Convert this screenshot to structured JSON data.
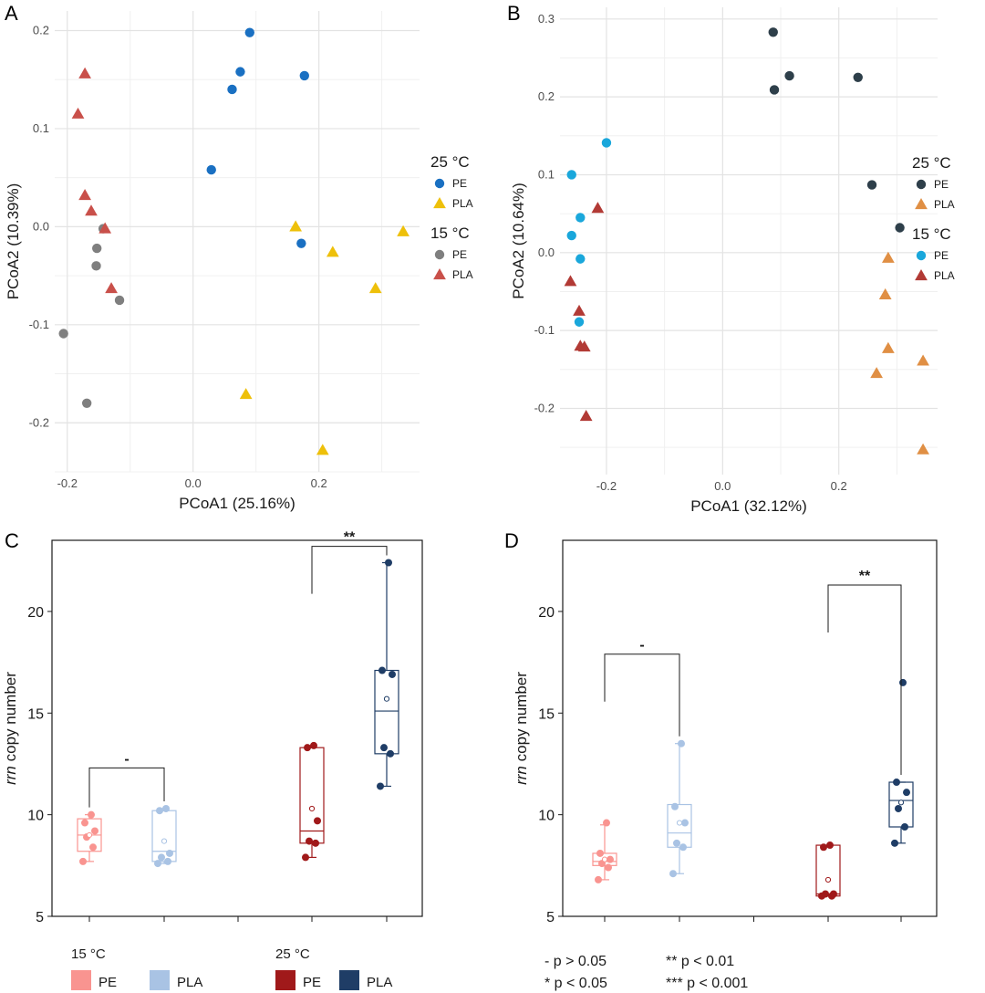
{
  "colors": {
    "pe25_A": "#1a70c2",
    "pla25_A": "#eec00a",
    "pe15_A": "#7f7f7f",
    "pla15_A": "#c9504a",
    "pe25_B": "#2e3f4a",
    "pla25_B": "#e08f44",
    "pe15_B": "#1aa7db",
    "pla15_B": "#b23a35",
    "box_pe15": "#f99490",
    "box_pla15": "#a9c3e4",
    "box_pe25": "#a0191a",
    "box_pla25": "#1f3d66"
  },
  "chart_data": [
    {
      "panel": "A",
      "type": "scatter",
      "xlabel": "PCoA1 (25.16%)",
      "ylabel": "PCoA2 (10.39%)",
      "xlim": [
        -0.22,
        0.36
      ],
      "ylim": [
        -0.25,
        0.22
      ],
      "xticks": [
        -0.2,
        0.0,
        0.2
      ],
      "xtick_labels": [
        "-0.2",
        "0.0",
        "0.2"
      ],
      "yticks": [
        -0.2,
        -0.1,
        0.0,
        0.1,
        0.2
      ],
      "ytick_labels": [
        "-0.2",
        "-0.1",
        "0.0",
        "0.1",
        "0.2"
      ],
      "legend": [
        {
          "title": "25 °C",
          "items": [
            {
              "label": "PE",
              "shape": "circle",
              "color_key": "pe25_A"
            },
            {
              "label": "PLA",
              "shape": "triangle",
              "color_key": "pla25_A"
            }
          ]
        },
        {
          "title": "15 °C",
          "items": [
            {
              "label": "PE",
              "shape": "circle",
              "color_key": "pe15_A"
            },
            {
              "label": "PLA",
              "shape": "triangle",
              "color_key": "pla15_A"
            }
          ]
        }
      ],
      "series": [
        {
          "name": "25 °C PE",
          "shape": "circle",
          "color_key": "pe25_A",
          "points": [
            [
              0.09,
              0.198
            ],
            [
              0.075,
              0.158
            ],
            [
              0.062,
              0.14
            ],
            [
              0.177,
              0.154
            ],
            [
              0.029,
              0.058
            ],
            [
              0.172,
              -0.017
            ]
          ]
        },
        {
          "name": "25 °C PLA",
          "shape": "triangle",
          "color_key": "pla25_A",
          "points": [
            [
              0.163,
              0.0
            ],
            [
              0.222,
              -0.026
            ],
            [
              0.334,
              -0.005
            ],
            [
              0.29,
              -0.063
            ],
            [
              0.084,
              -0.171
            ],
            [
              0.206,
              -0.228
            ]
          ]
        },
        {
          "name": "15 °C PE",
          "shape": "circle",
          "color_key": "pe15_A",
          "points": [
            [
              -0.143,
              -0.002
            ],
            [
              -0.153,
              -0.022
            ],
            [
              -0.154,
              -0.04
            ],
            [
              -0.117,
              -0.075
            ],
            [
              -0.206,
              -0.109
            ],
            [
              -0.169,
              -0.18
            ]
          ]
        },
        {
          "name": "15 °C PLA",
          "shape": "triangle",
          "color_key": "pla15_A",
          "points": [
            [
              -0.172,
              0.156
            ],
            [
              -0.183,
              0.115
            ],
            [
              -0.172,
              0.032
            ],
            [
              -0.162,
              0.016
            ],
            [
              -0.14,
              -0.002
            ],
            [
              -0.13,
              -0.063
            ]
          ]
        }
      ]
    },
    {
      "panel": "B",
      "type": "scatter",
      "xlabel": "PCoA1 (32.12%)",
      "ylabel": "PCoA2 (10.64%)",
      "xlim": [
        -0.28,
        0.37
      ],
      "ylim": [
        -0.285,
        0.315
      ],
      "xticks": [
        -0.2,
        0.0,
        0.2
      ],
      "xtick_labels": [
        "-0.2",
        "0.0",
        "0.2"
      ],
      "yticks": [
        -0.2,
        -0.1,
        0.0,
        0.1,
        0.2,
        0.3
      ],
      "ytick_labels": [
        "-0.2",
        "-0.1",
        "0.0",
        "0.1",
        "0.2",
        "0.3"
      ],
      "legend": [
        {
          "title": "25 °C",
          "items": [
            {
              "label": "PE",
              "shape": "circle",
              "color_key": "pe25_B"
            },
            {
              "label": "PLA",
              "shape": "triangle",
              "color_key": "pla25_B"
            }
          ]
        },
        {
          "title": "15 °C",
          "items": [
            {
              "label": "PE",
              "shape": "circle",
              "color_key": "pe15_B"
            },
            {
              "label": "PLA",
              "shape": "triangle",
              "color_key": "pla15_B"
            }
          ]
        }
      ],
      "series": [
        {
          "name": "25 °C PE",
          "shape": "circle",
          "color_key": "pe25_B",
          "points": [
            [
              0.087,
              0.283
            ],
            [
              0.115,
              0.227
            ],
            [
              0.089,
              0.209
            ],
            [
              0.233,
              0.225
            ],
            [
              0.257,
              0.087
            ],
            [
              0.305,
              0.032
            ]
          ]
        },
        {
          "name": "25 °C PLA",
          "shape": "triangle",
          "color_key": "pla25_B",
          "points": [
            [
              0.285,
              -0.007
            ],
            [
              0.28,
              -0.054
            ],
            [
              0.285,
              -0.123
            ],
            [
              0.265,
              -0.155
            ],
            [
              0.345,
              -0.139
            ],
            [
              0.345,
              -0.253
            ]
          ]
        },
        {
          "name": "15 °C PE",
          "shape": "circle",
          "color_key": "pe15_B",
          "points": [
            [
              -0.2,
              0.141
            ],
            [
              -0.26,
              0.1
            ],
            [
              -0.245,
              0.045
            ],
            [
              -0.26,
              0.022
            ],
            [
              -0.245,
              -0.008
            ],
            [
              -0.247,
              -0.089
            ]
          ]
        },
        {
          "name": "15 °C PLA",
          "shape": "triangle",
          "color_key": "pla15_B",
          "points": [
            [
              -0.215,
              0.057
            ],
            [
              -0.262,
              -0.037
            ],
            [
              -0.247,
              -0.075
            ],
            [
              -0.245,
              -0.12
            ],
            [
              -0.238,
              -0.121
            ],
            [
              -0.235,
              -0.21
            ]
          ]
        }
      ]
    },
    {
      "panel": "C",
      "type": "box",
      "ylabel_italic": "rrn",
      "ylabel_rest": " copy number",
      "ylim": [
        5,
        23.5
      ],
      "yticks": [
        5,
        10,
        15,
        20
      ],
      "ytick_labels": [
        "5",
        "10",
        "15",
        "20"
      ],
      "groups": [
        {
          "name": "15 °C PE",
          "color_key": "box_pe15",
          "q1": 8.2,
          "median": 9.0,
          "q3": 9.8,
          "whisker_low": 7.7,
          "whisker_high": 10.0,
          "mean": 9.0,
          "points": [
            7.7,
            8.4,
            8.9,
            9.2,
            9.6,
            10.0
          ]
        },
        {
          "name": "15 °C PLA",
          "color_key": "box_pla15",
          "q1": 7.7,
          "median": 8.2,
          "q3": 10.2,
          "whisker_low": 7.6,
          "whisker_high": 10.3,
          "mean": 8.7,
          "points": [
            7.6,
            7.7,
            7.9,
            8.1,
            10.2,
            10.3
          ]
        },
        {
          "name": "25 °C PE",
          "color_key": "box_pe25",
          "q1": 8.6,
          "median": 9.2,
          "q3": 13.3,
          "whisker_low": 7.9,
          "whisker_high": 13.4,
          "mean": 10.3,
          "points": [
            7.9,
            8.6,
            8.7,
            9.7,
            13.3,
            13.4
          ]
        },
        {
          "name": "25 °C PLA",
          "color_key": "box_pla25",
          "q1": 13.0,
          "median": 15.1,
          "q3": 17.1,
          "whisker_low": 11.4,
          "whisker_high": 22.4,
          "mean": 15.7,
          "points": [
            11.4,
            13.0,
            13.3,
            16.9,
            17.1,
            22.4
          ]
        }
      ],
      "brackets": [
        {
          "from": 0,
          "to": 1,
          "y": 12.3,
          "label": "-"
        },
        {
          "from": 2,
          "to": 3,
          "y": 23.2,
          "label": "**"
        }
      ],
      "legend": [
        {
          "title": "15 °C",
          "items": [
            {
              "label": "PE",
              "color_key": "box_pe15"
            },
            {
              "label": "PLA",
              "color_key": "box_pla15"
            }
          ]
        },
        {
          "title": "25 °C",
          "items": [
            {
              "label": "PE",
              "color_key": "box_pe25"
            },
            {
              "label": "PLA",
              "color_key": "box_pla25"
            }
          ]
        }
      ]
    },
    {
      "panel": "D",
      "type": "box",
      "ylabel_italic": "rrn",
      "ylabel_rest": " copy number",
      "ylim": [
        5,
        23.5
      ],
      "yticks": [
        5,
        10,
        15,
        20
      ],
      "ytick_labels": [
        "5",
        "10",
        "15",
        "20"
      ],
      "groups": [
        {
          "name": "15 °C PE",
          "color_key": "box_pe15",
          "q1": 7.5,
          "median": 7.7,
          "q3": 8.1,
          "whisker_low": 6.8,
          "whisker_high": 9.5,
          "mean": 7.8,
          "points": [
            6.8,
            7.4,
            7.6,
            7.8,
            8.1,
            9.6
          ]
        },
        {
          "name": "15 °C PLA",
          "color_key": "box_pla15",
          "q1": 8.4,
          "median": 9.1,
          "q3": 10.5,
          "whisker_low": 7.1,
          "whisker_high": 13.5,
          "mean": 9.6,
          "points": [
            7.1,
            8.4,
            8.6,
            9.6,
            10.4,
            13.5
          ]
        },
        {
          "name": "25 °C PE",
          "color_key": "box_pe25",
          "q1": 6.0,
          "median": 6.1,
          "q3": 8.5,
          "whisker_low": 6.0,
          "whisker_high": 8.5,
          "mean": 6.8,
          "points": [
            6.0,
            6.0,
            6.1,
            6.1,
            8.4,
            8.5
          ]
        },
        {
          "name": "25 °C PLA",
          "color_key": "box_pla25",
          "q1": 9.4,
          "median": 10.7,
          "q3": 11.6,
          "whisker_low": 8.6,
          "whisker_high": 11.6,
          "mean": 10.6,
          "points": [
            8.6,
            9.4,
            10.3,
            11.1,
            11.6,
            16.5
          ]
        }
      ],
      "brackets": [
        {
          "from": 0,
          "to": 1,
          "y": 17.9,
          "label": "-"
        },
        {
          "from": 2,
          "to": 3,
          "y": 21.3,
          "label": "**"
        }
      ],
      "notes": [
        {
          "text": "- p > 0.05"
        },
        {
          "text": "** p < 0.01"
        },
        {
          "text": "* p < 0.05"
        },
        {
          "text": "*** p < 0.001"
        }
      ]
    }
  ]
}
